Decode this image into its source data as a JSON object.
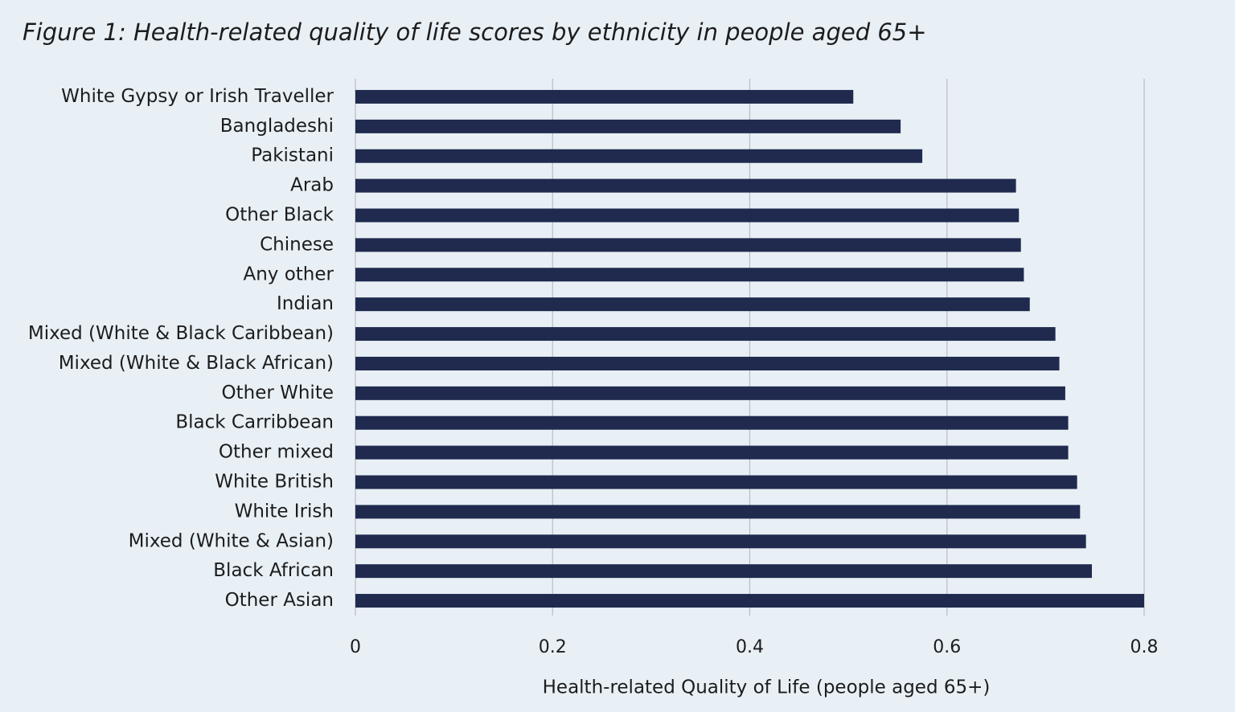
{
  "chart_data": {
    "type": "barh",
    "title": "Figure 1: Health-related quality of life scores by ethnicity in people aged 65+",
    "categories": [
      "White Gypsy or Irish Traveller",
      "Bangladeshi",
      "Pakistani",
      "Arab",
      "Other Black",
      "Chinese",
      "Any other",
      "Indian",
      "Mixed (White & Black Caribbean)",
      "Mixed (White & Black African)",
      "Other White",
      "Black Carribbean",
      "Other mixed",
      "White British",
      "White Irish",
      "Mixed (White & Asian)",
      "Black African",
      "Other Asian"
    ],
    "values": [
      0.505,
      0.553,
      0.575,
      0.67,
      0.673,
      0.675,
      0.678,
      0.684,
      0.71,
      0.714,
      0.72,
      0.723,
      0.723,
      0.732,
      0.735,
      0.741,
      0.747,
      0.8
    ],
    "color": "#1f2a4e",
    "xlabel": "Health-related Quality of Life (people aged 65+)",
    "xlim": [
      0,
      0.8
    ],
    "xticks": [
      0,
      0.2,
      0.4,
      0.6,
      0.8
    ],
    "grid": true
  }
}
